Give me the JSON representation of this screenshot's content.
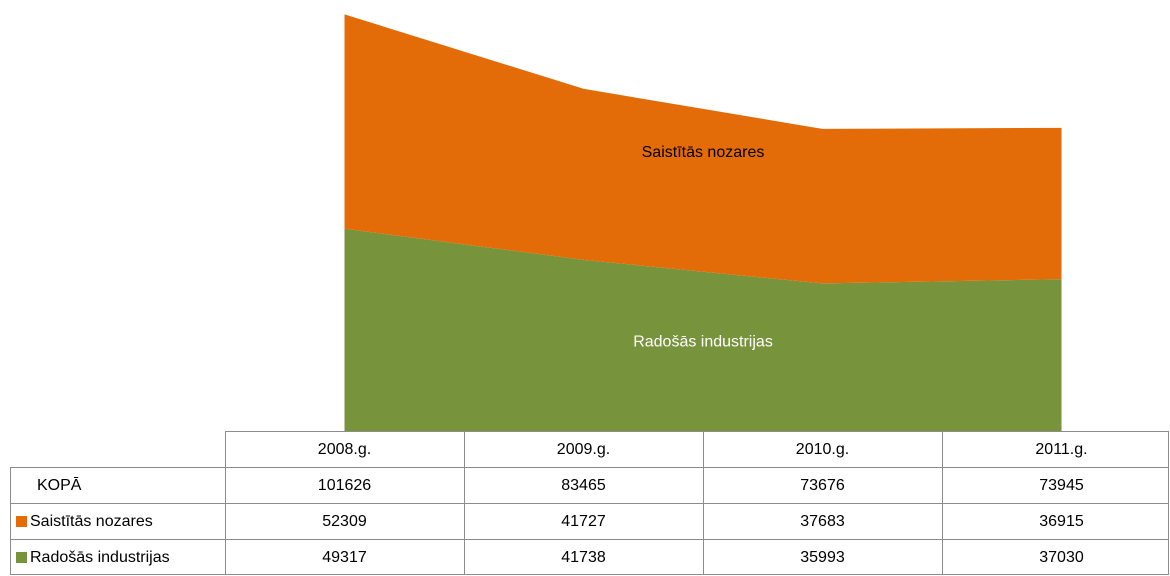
{
  "chart_data": {
    "type": "area",
    "categories": [
      "2008.g.",
      "2009.g.",
      "2010.g.",
      "2011.g."
    ],
    "series": [
      {
        "name": "Saistītās nozares",
        "color": "#e36c09",
        "values": [
          52309,
          41727,
          37683,
          36915
        ]
      },
      {
        "name": "Radošās industrijas",
        "color": "#77933c",
        "values": [
          49317,
          41738,
          35993,
          37030
        ]
      }
    ],
    "total": {
      "name": "KOPĀ",
      "values": [
        101626,
        83465,
        73676,
        73945
      ]
    },
    "ylim": [
      0,
      100000
    ]
  }
}
